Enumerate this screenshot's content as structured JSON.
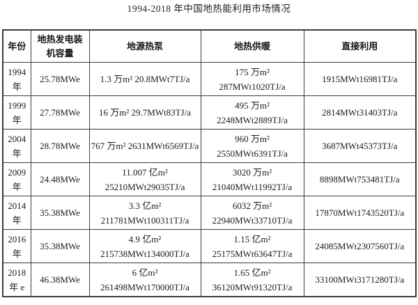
{
  "title": "1994-2018 年中国地热能利用市场情况",
  "colors": {
    "border": "#3b3b3b",
    "text": "#1a1a1a",
    "background": "#ffffff"
  },
  "chart_data": {
    "type": "table",
    "title": "1994-2018 年中国地热能利用市场情况",
    "columns": [
      {
        "key": "year",
        "header_lines": [
          "年份"
        ]
      },
      {
        "key": "capacity",
        "header_lines": [
          "地热发电装",
          "机容量"
        ]
      },
      {
        "key": "heat_pump",
        "header_lines": [
          "地源热泵"
        ]
      },
      {
        "key": "heating",
        "header_lines": [
          "地热供暖"
        ]
      },
      {
        "key": "direct",
        "header_lines": [
          "直接利用"
        ]
      }
    ],
    "rows": [
      {
        "year": [
          "1994",
          "年"
        ],
        "capacity": [
          "25.78MWe"
        ],
        "heat_pump": [
          "1.3 万m² 20.8MWt7TJ/a"
        ],
        "heating": [
          "175 万m²",
          "287MWt1020TJ/a"
        ],
        "direct": [
          "1915MWt16981TJ/a"
        ]
      },
      {
        "year": [
          "1999",
          "年"
        ],
        "capacity": [
          "27.78MWe"
        ],
        "heat_pump": [
          "16 万m² 29.7MWt83TJ/a"
        ],
        "heating": [
          "495 万m²",
          "2248MWt2889TJ/a"
        ],
        "direct": [
          "2814MWt31403TJ/a"
        ]
      },
      {
        "year": [
          "2004",
          "年"
        ],
        "capacity": [
          "28.78MWe"
        ],
        "heat_pump": [
          "767 万m² 2631MWt6569TJ/a"
        ],
        "heating": [
          "960 万m²",
          "2550MWt6391TJ/a"
        ],
        "direct": [
          "3687MWt45373TJ/a"
        ]
      },
      {
        "year": [
          "2009",
          "年"
        ],
        "capacity": [
          "24.48MWe"
        ],
        "heat_pump": [
          "11.007 亿m²",
          "25210MWt29035TJ/a"
        ],
        "heating": [
          "3020 万m²",
          "21040MWt11992TJ/a"
        ],
        "direct": [
          "8898MWt753481TJ/a"
        ]
      },
      {
        "year": [
          "2014",
          "年"
        ],
        "capacity": [
          "35.38MWe"
        ],
        "heat_pump": [
          "3.3 亿m²",
          "211781MWt100311TJ/a"
        ],
        "heating": [
          "6032 万m²",
          "22940MWt33710TJ/a"
        ],
        "direct": [
          "17870MWt1743520TJ/a"
        ]
      },
      {
        "year": [
          "2016",
          "年"
        ],
        "capacity": [
          "35.38MWe"
        ],
        "heat_pump": [
          "4.9 亿m²",
          "215738MWt134000TJ/a"
        ],
        "heating": [
          "1.15 亿m²",
          "25175MWt63647TJ/a"
        ],
        "direct": [
          "24085MWt2307560TJ/a"
        ]
      },
      {
        "year": [
          "2018",
          "年 e"
        ],
        "capacity": [
          "46.38MWe"
        ],
        "heat_pump": [
          "6 亿m²",
          "261498MWt170000TJ/a"
        ],
        "heating": [
          "1.65 亿m²",
          "36120MWt91320TJ/a"
        ],
        "direct": [
          "33100MWt3171280TJ/a"
        ]
      }
    ]
  }
}
